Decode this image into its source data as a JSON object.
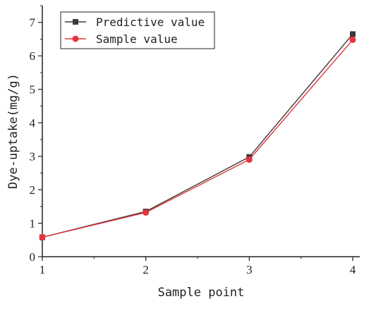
{
  "chart_data": {
    "type": "line",
    "title": "",
    "xlabel": "Sample point",
    "ylabel": "Dye-uptake(mg/g)",
    "x": [
      1,
      2,
      3,
      4
    ],
    "xticks": [
      1,
      2,
      3,
      4
    ],
    "xlim": [
      1,
      4
    ],
    "yticks": [
      0,
      1,
      2,
      3,
      4,
      5,
      6,
      7
    ],
    "ylim": [
      0,
      7.5
    ],
    "grid": false,
    "legend_position": "top-left",
    "series": [
      {
        "name": "Predictive value",
        "values": [
          0.58,
          1.35,
          2.98,
          6.65
        ],
        "color": "#3a3a3a",
        "marker": "square"
      },
      {
        "name": "Sample value",
        "values": [
          0.58,
          1.32,
          2.9,
          6.48
        ],
        "color": "#e8323c",
        "marker": "circle"
      }
    ]
  }
}
